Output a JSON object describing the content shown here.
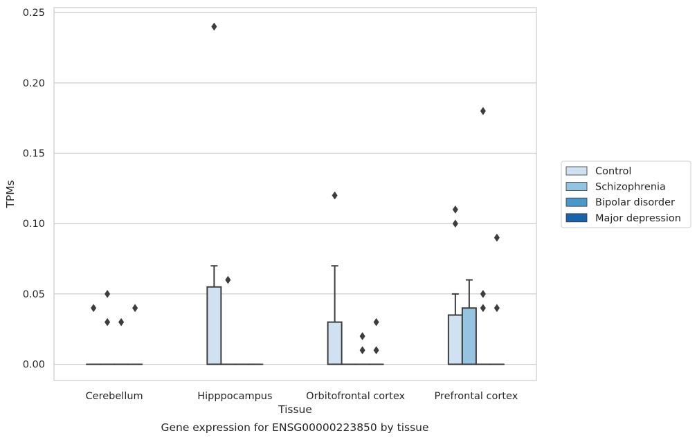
{
  "chart_data": {
    "type": "box",
    "caption": "Gene expression for ENSG00000223850 by tissue",
    "xlabel": "Tissue",
    "ylabel": "TPMs",
    "ylim": [
      -0.0115,
      0.2535
    ],
    "yticks": [
      0.0,
      0.05,
      0.1,
      0.15,
      0.2,
      0.25
    ],
    "ytick_labels": [
      "0.00",
      "0.05",
      "0.10",
      "0.15",
      "0.20",
      "0.25"
    ],
    "grid": "horizontal",
    "legend_position": "right",
    "categories": [
      "Cerebellum",
      "Hipppocampus",
      "Orbitofrontal cortex",
      "Prefrontal cortex"
    ],
    "series": [
      {
        "name": "Control",
        "color": "#d0e1f2",
        "boxes": [
          {
            "q1": 0,
            "median": 0,
            "q3": 0,
            "whislo": 0,
            "whishi": 0,
            "fliers": [
              0.04
            ]
          },
          {
            "q1": 0,
            "median": 0,
            "q3": 0.055,
            "whislo": 0,
            "whishi": 0.07,
            "fliers": [
              0.24
            ]
          },
          {
            "q1": 0,
            "median": 0,
            "q3": 0.03,
            "whislo": 0,
            "whishi": 0.07,
            "fliers": [
              0.12
            ]
          },
          {
            "q1": 0,
            "median": 0,
            "q3": 0.035,
            "whislo": 0,
            "whishi": 0.05,
            "fliers": [
              0.1,
              0.11
            ]
          }
        ]
      },
      {
        "name": "Schizophrenia",
        "color": "#94c4df",
        "boxes": [
          {
            "q1": 0,
            "median": 0,
            "q3": 0,
            "whislo": 0,
            "whishi": 0,
            "fliers": [
              0.03,
              0.05
            ]
          },
          {
            "q1": 0,
            "median": 0,
            "q3": 0,
            "whislo": 0,
            "whishi": 0,
            "fliers": [
              0.06
            ]
          },
          {
            "q1": 0,
            "median": 0,
            "q3": 0,
            "whislo": 0,
            "whishi": 0,
            "fliers": []
          },
          {
            "q1": 0,
            "median": 0,
            "q3": 0.04,
            "whislo": 0,
            "whishi": 0.06,
            "fliers": []
          }
        ]
      },
      {
        "name": "Bipolar disorder",
        "color": "#4a98c9",
        "boxes": [
          {
            "q1": 0,
            "median": 0,
            "q3": 0,
            "whislo": 0,
            "whishi": 0,
            "fliers": [
              0.03
            ]
          },
          {
            "q1": 0,
            "median": 0,
            "q3": 0,
            "whislo": 0,
            "whishi": 0,
            "fliers": []
          },
          {
            "q1": 0,
            "median": 0,
            "q3": 0,
            "whislo": 0,
            "whishi": 0,
            "fliers": [
              0.01,
              0.02
            ]
          },
          {
            "q1": 0,
            "median": 0,
            "q3": 0,
            "whislo": 0,
            "whishi": 0,
            "fliers": [
              0.04,
              0.05,
              0.18
            ]
          }
        ]
      },
      {
        "name": "Major depression",
        "color": "#1764ab",
        "boxes": [
          {
            "q1": 0,
            "median": 0,
            "q3": 0,
            "whislo": 0,
            "whishi": 0,
            "fliers": [
              0.04
            ]
          },
          {
            "q1": 0,
            "median": 0,
            "q3": 0,
            "whislo": 0,
            "whishi": 0,
            "fliers": []
          },
          {
            "q1": 0,
            "median": 0,
            "q3": 0,
            "whislo": 0,
            "whishi": 0,
            "fliers": [
              0.01,
              0.03
            ]
          },
          {
            "q1": 0,
            "median": 0,
            "q3": 0,
            "whislo": 0,
            "whishi": 0,
            "fliers": [
              0.04,
              0.09
            ]
          }
        ]
      }
    ]
  }
}
